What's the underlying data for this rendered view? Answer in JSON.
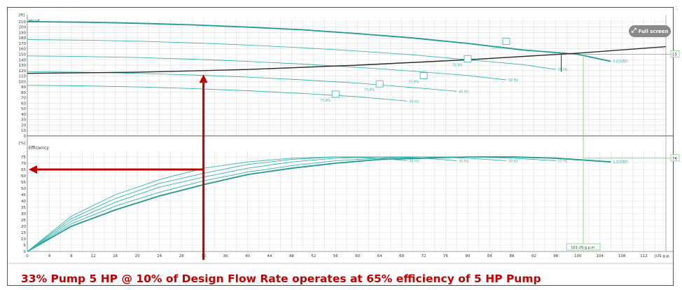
{
  "ui": {
    "full_screen_label": "Full screen",
    "caption": "33%  Pump  5 HP @ 10% of Design Flow Rate operates at 65% efficiency of 5 HP Pump"
  },
  "colors": {
    "curve": "#36b3ad",
    "curve_bold": "#1f9a94",
    "system": "#2a2a2a",
    "system_bold": "#8a1a1a",
    "annotation": "#c00000",
    "guide": "#7fcf7f",
    "grid": "#dcdcdc"
  },
  "chart_data": [
    {
      "type": "line",
      "title": "Head",
      "ylabel": "[ft]",
      "xlim": [
        0,
        116
      ],
      "ylim": [
        0,
        215
      ],
      "yticks": [
        0,
        10,
        20,
        30,
        40,
        50,
        60,
        70,
        80,
        90,
        100,
        110,
        120,
        130,
        140,
        150,
        160,
        170,
        180,
        190,
        200,
        210
      ],
      "grid": true,
      "series": [
        {
          "name": "0.83VBFI",
          "width": 1.8,
          "x": [
            0,
            10,
            20,
            30,
            40,
            50,
            60,
            70,
            80,
            90,
            100,
            106
          ],
          "y": [
            210,
            209,
            207,
            204,
            200,
            195,
            188,
            180,
            170,
            158,
            150,
            137
          ]
        },
        {
          "name": "55 Hz",
          "x": [
            0,
            10,
            20,
            30,
            40,
            50,
            60,
            70,
            80,
            90,
            96
          ],
          "y": [
            177,
            176,
            174,
            171,
            167,
            162,
            156,
            149,
            140,
            131,
            122
          ]
        },
        {
          "name": "50 Hz",
          "x": [
            0,
            10,
            20,
            30,
            40,
            50,
            60,
            70,
            80,
            87
          ],
          "y": [
            147,
            146,
            144,
            141,
            137,
            132,
            126,
            119,
            111,
            103
          ]
        },
        {
          "name": "45 Hz",
          "x": [
            0,
            10,
            20,
            30,
            40,
            50,
            60,
            70,
            78
          ],
          "y": [
            118,
            117,
            115,
            112,
            108,
            103,
            97,
            89,
            82
          ]
        },
        {
          "name": "40 Hz",
          "x": [
            0,
            10,
            20,
            30,
            40,
            50,
            60,
            69
          ],
          "y": [
            93,
            92,
            90,
            87,
            83,
            78,
            72,
            64
          ]
        },
        {
          "name": "system",
          "kind": "system",
          "x": [
            0,
            20,
            40,
            60,
            80,
            100,
            116
          ],
          "y": [
            115,
            117,
            122,
            130,
            140,
            152,
            164
          ]
        }
      ],
      "markers": [
        {
          "label": "75.9%",
          "x": 87,
          "y": 173
        },
        {
          "label": "75.9%",
          "x": 80,
          "y": 141
        },
        {
          "label": "75.9%",
          "x": 72,
          "y": 110
        },
        {
          "label": "75.9%",
          "x": 64,
          "y": 95
        },
        {
          "label": "75.9%",
          "x": 56,
          "y": 76
        }
      ],
      "annotations": [
        {
          "text": "15",
          "x": 116,
          "y": 150
        }
      ]
    },
    {
      "type": "line",
      "title": "Efficiency",
      "ylabel": "[%]",
      "xlabel": "[US g.p.",
      "xlim": [
        0,
        116
      ],
      "ylim": [
        0,
        80
      ],
      "xticks": [
        0,
        4,
        8,
        12,
        16,
        20,
        24,
        28,
        32,
        36,
        40,
        44,
        48,
        52,
        56,
        60,
        64,
        68,
        72,
        76,
        80,
        84,
        88,
        92,
        96,
        100,
        104,
        108,
        112
      ],
      "yticks": [
        0,
        5,
        10,
        15,
        20,
        25,
        30,
        35,
        40,
        45,
        50,
        55,
        60,
        65,
        70,
        75
      ],
      "grid": true,
      "series": [
        {
          "name": "0.83VBFI",
          "width": 1.8,
          "x": [
            0,
            8,
            16,
            24,
            32,
            40,
            48,
            56,
            64,
            72,
            80,
            88,
            96,
            106
          ],
          "y": [
            0,
            20,
            33,
            44,
            53,
            61,
            66,
            70,
            73,
            74,
            75,
            75,
            74,
            71
          ]
        },
        {
          "name": "55 Hz",
          "x": [
            0,
            8,
            16,
            24,
            32,
            40,
            48,
            56,
            64,
            72,
            80,
            88,
            96
          ],
          "y": [
            0,
            22,
            36,
            47,
            56,
            63,
            68,
            72,
            74,
            75,
            75,
            74,
            72
          ]
        },
        {
          "name": "50 Hz",
          "x": [
            0,
            8,
            16,
            24,
            32,
            40,
            48,
            56,
            64,
            72,
            80,
            87
          ],
          "y": [
            0,
            24,
            39,
            51,
            59,
            66,
            71,
            74,
            75,
            75,
            74,
            72
          ]
        },
        {
          "name": "45 Hz",
          "x": [
            0,
            8,
            16,
            24,
            32,
            40,
            48,
            56,
            64,
            72,
            78
          ],
          "y": [
            0,
            26,
            42,
            54,
            62,
            69,
            73,
            75,
            75,
            74,
            72
          ]
        },
        {
          "name": "40 Hz",
          "x": [
            0,
            8,
            16,
            24,
            32,
            40,
            48,
            56,
            64,
            69
          ],
          "y": [
            0,
            28,
            45,
            57,
            66,
            71,
            74,
            75,
            74,
            72
          ]
        }
      ],
      "annotations": [
        {
          "text": "74",
          "x": 116,
          "y": 74
        },
        {
          "text": "101 US g.p.m.",
          "x": 101,
          "y": 0
        }
      ]
    }
  ]
}
